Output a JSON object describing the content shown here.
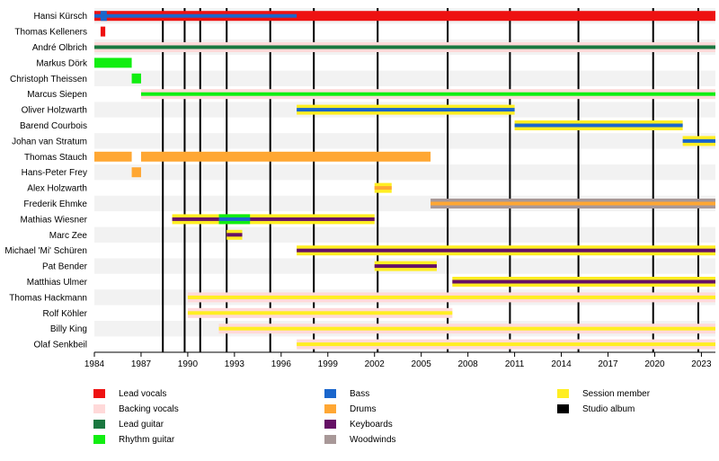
{
  "chart_data": {
    "type": "timeline",
    "x_axis": {
      "min": 1984,
      "max": 2023.9,
      "ticks": [
        1984,
        1987,
        1990,
        1993,
        1996,
        1999,
        2002,
        2005,
        2008,
        2011,
        2014,
        2017,
        2020,
        2023
      ]
    },
    "colors": {
      "lead_vocals": "#ee1111",
      "backing_vocals": "#ffd9d9",
      "lead_guitar": "#1a7840",
      "rhythm_guitar": "#11ee11",
      "bass": "#1a66cc",
      "drums": "#ffa733",
      "keyboards": "#661166",
      "woodwinds": "#a89898",
      "session_member": "#ffee22",
      "studio_album": "#000000"
    },
    "members": [
      {
        "name": "Hansi Kürsch",
        "bars": [
          {
            "start": 1984,
            "end": 2023.9,
            "role": "lead_vocals"
          },
          {
            "start": 1984,
            "end": 1997,
            "role": "bass",
            "style": "stripe"
          },
          {
            "start": 1984.4,
            "end": 1984.8,
            "role": "bass",
            "style": "half"
          }
        ]
      },
      {
        "name": "Thomas Kelleners",
        "bars": [
          {
            "start": 1984.4,
            "end": 1984.7,
            "role": "lead_vocals"
          }
        ]
      },
      {
        "name": "André Olbrich",
        "bars": [
          {
            "start": 1984,
            "end": 2023.9,
            "role": "lead_guitar",
            "style": "stripe_on",
            "bg": "backing_vocals"
          }
        ]
      },
      {
        "name": "Markus Dörk",
        "bars": [
          {
            "start": 1984,
            "end": 1986.4,
            "role": "rhythm_guitar"
          }
        ]
      },
      {
        "name": "Christoph Theissen",
        "bars": [
          {
            "start": 1986.4,
            "end": 1987,
            "role": "rhythm_guitar"
          }
        ]
      },
      {
        "name": "Marcus Siepen",
        "bars": [
          {
            "start": 1987,
            "end": 2023.9,
            "role": "rhythm_guitar",
            "style": "stripe_on",
            "bg": "backing_vocals"
          }
        ]
      },
      {
        "name": "Oliver Holzwarth",
        "bars": [
          {
            "start": 1997,
            "end": 2011,
            "role": "bass",
            "style": "stripe_on",
            "bg": "session_member"
          }
        ]
      },
      {
        "name": "Barend Courbois",
        "bars": [
          {
            "start": 2011,
            "end": 2021.8,
            "role": "bass",
            "style": "stripe_on",
            "bg": "session_member"
          }
        ]
      },
      {
        "name": "Johan van Stratum",
        "bars": [
          {
            "start": 2021.8,
            "end": 2023.9,
            "role": "bass",
            "style": "stripe_on",
            "bg": "session_member"
          }
        ]
      },
      {
        "name": "Thomas Stauch",
        "bars": [
          {
            "start": 1984,
            "end": 1986.4,
            "role": "drums"
          },
          {
            "start": 1987,
            "end": 2005.6,
            "role": "drums"
          }
        ]
      },
      {
        "name": "Hans-Peter Frey",
        "bars": [
          {
            "start": 1986.4,
            "end": 1987,
            "role": "drums"
          }
        ]
      },
      {
        "name": "Alex Holzwarth",
        "bars": [
          {
            "start": 2002,
            "end": 2003.1,
            "role": "drums",
            "style": "stripe_on",
            "bg": "session_member"
          }
        ]
      },
      {
        "name": "Frederik Ehmke",
        "bars": [
          {
            "start": 2005.6,
            "end": 2023.9,
            "role": "drums",
            "style": "stripe_on",
            "bg": "woodwinds"
          }
        ]
      },
      {
        "name": "Mathias Wiesner",
        "bars": [
          {
            "start": 1989,
            "end": 2002,
            "role": "keyboards",
            "style": "stripe_on",
            "bg": "session_member"
          },
          {
            "start": 1992,
            "end": 1994,
            "role": "bass",
            "style": "stripe_on",
            "bg": "rhythm_guitar"
          }
        ]
      },
      {
        "name": "Marc Zee",
        "bars": [
          {
            "start": 1992.5,
            "end": 1993.5,
            "role": "keyboards",
            "style": "stripe_on",
            "bg": "session_member"
          }
        ]
      },
      {
        "name": "Michael 'Mi' Schüren",
        "bars": [
          {
            "start": 1997,
            "end": 2023.9,
            "role": "keyboards",
            "style": "stripe_on",
            "bg": "session_member"
          }
        ]
      },
      {
        "name": "Pat Bender",
        "bars": [
          {
            "start": 2002,
            "end": 2006,
            "role": "keyboards",
            "style": "stripe_on",
            "bg": "session_member"
          }
        ]
      },
      {
        "name": "Matthias Ulmer",
        "bars": [
          {
            "start": 2007,
            "end": 2023.9,
            "role": "keyboards",
            "style": "stripe_on",
            "bg": "session_member"
          }
        ]
      },
      {
        "name": "Thomas Hackmann",
        "bars": [
          {
            "start": 1990,
            "end": 2023.9,
            "role": "session_member",
            "style": "stripe_on",
            "bg": "backing_vocals"
          }
        ]
      },
      {
        "name": "Rolf Köhler",
        "bars": [
          {
            "start": 1990,
            "end": 2007,
            "role": "session_member",
            "style": "stripe_on",
            "bg": "backing_vocals"
          }
        ]
      },
      {
        "name": "Billy King",
        "bars": [
          {
            "start": 1992,
            "end": 2023.9,
            "role": "session_member",
            "style": "stripe_on",
            "bg": "backing_vocals"
          }
        ]
      },
      {
        "name": "Olaf Senkbeil",
        "bars": [
          {
            "start": 1997,
            "end": 2023.9,
            "role": "session_member",
            "style": "stripe_on",
            "bg": "backing_vocals"
          }
        ]
      }
    ],
    "studio_albums": [
      1988.4,
      1989.8,
      1990.8,
      1992.5,
      1995.3,
      1998.1,
      2002.2,
      2006.7,
      2010.7,
      2015.1,
      2019.9,
      2022.8
    ],
    "legend": [
      {
        "label": "Lead vocals",
        "role": "lead_vocals"
      },
      {
        "label": "Backing vocals",
        "role": "backing_vocals"
      },
      {
        "label": "Lead guitar",
        "role": "lead_guitar"
      },
      {
        "label": "Rhythm guitar",
        "role": "rhythm_guitar"
      },
      {
        "label": "Bass",
        "role": "bass"
      },
      {
        "label": "Drums",
        "role": "drums"
      },
      {
        "label": "Keyboards",
        "role": "keyboards"
      },
      {
        "label": "Woodwinds",
        "role": "woodwinds"
      },
      {
        "label": "Session member",
        "role": "session_member"
      },
      {
        "label": "Studio album",
        "role": "studio_album"
      }
    ]
  }
}
